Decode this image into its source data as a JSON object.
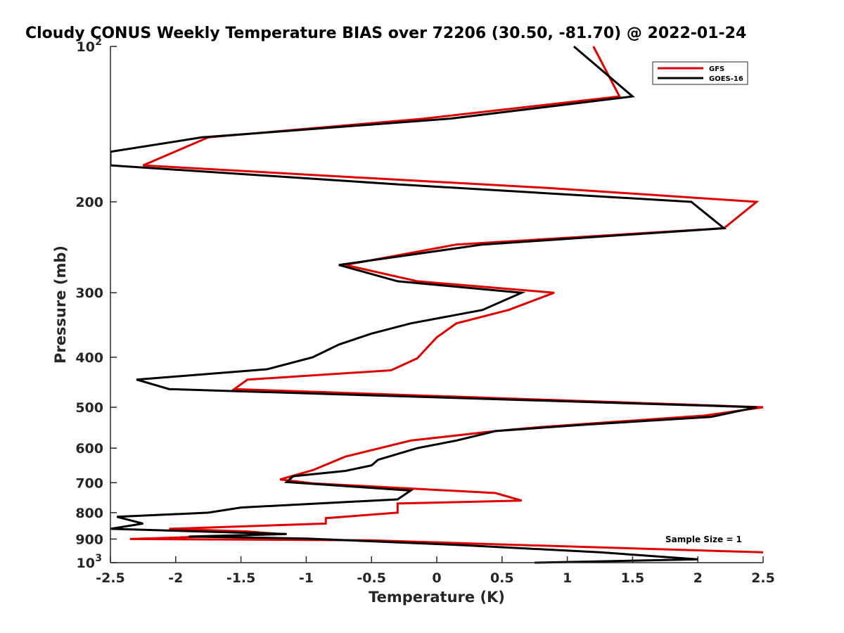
{
  "chart_data": {
    "type": "line",
    "title": "Cloudy CONUS Weekly Temperature BIAS over 72206 (30.50, -81.70) @ 2022-01-24",
    "xlabel": "Temperature (K)",
    "ylabel": "Pressure (mb)",
    "xlim": [
      -2.5,
      2.5
    ],
    "ylim": [
      100,
      1000
    ],
    "y_scale": "log",
    "y_reversed": true,
    "x_ticks": [
      -2.5,
      -2,
      -1.5,
      -1,
      -0.5,
      0,
      0.5,
      1,
      1.5,
      2,
      2.5
    ],
    "x_tick_labels": [
      "-2.5",
      "-2",
      "-1.5",
      "-1",
      "-0.5",
      "0",
      "0.5",
      "1",
      "1.5",
      "2",
      "2.5"
    ],
    "y_ticks": [
      200,
      300,
      400,
      500,
      600,
      700,
      800,
      900
    ],
    "y_tick_labels": [
      "200",
      "300",
      "400",
      "500",
      "600",
      "700",
      "800",
      "900"
    ],
    "y_end_labels": [
      {
        "value": 100,
        "base": "10",
        "exp": "2"
      },
      {
        "value": 1000,
        "base": "10",
        "exp": "3"
      }
    ],
    "legend_position": "top-right",
    "annotation": "Sample Size = 1",
    "series": [
      {
        "name": "GFS",
        "color": "#e00000",
        "points": [
          [
            1.2,
            100
          ],
          [
            1.4,
            125
          ],
          [
            -0.1,
            138
          ],
          [
            -1.75,
            150
          ],
          [
            -2.25,
            170
          ],
          [
            -0.5,
            180
          ],
          [
            0.85,
            188
          ],
          [
            2.45,
            200
          ],
          [
            2.2,
            225
          ],
          [
            0.15,
            242
          ],
          [
            -0.7,
            265
          ],
          [
            -0.15,
            285
          ],
          [
            0.9,
            300
          ],
          [
            0.55,
            324
          ],
          [
            0.15,
            344
          ],
          [
            0,
            366
          ],
          [
            -0.15,
            402
          ],
          [
            -0.35,
            424
          ],
          [
            -1.45,
            442
          ],
          [
            -1.55,
            461
          ],
          [
            2.5,
            500
          ],
          [
            2.05,
            519
          ],
          [
            0.8,
            546
          ],
          [
            0.45,
            556
          ],
          [
            -0.2,
            580
          ],
          [
            -0.7,
            623
          ],
          [
            -0.95,
            662
          ],
          [
            -1.2,
            690
          ],
          [
            -0.95,
            702
          ],
          [
            0.45,
            733
          ],
          [
            0.65,
            758
          ],
          [
            -0.3,
            768
          ],
          [
            -0.3,
            800
          ],
          [
            -0.85,
            820
          ],
          [
            -0.85,
            840
          ],
          [
            -2.05,
            860
          ],
          [
            -1.45,
            870
          ],
          [
            -1.2,
            880
          ],
          [
            -2.35,
            900
          ],
          [
            -0.5,
            905
          ],
          [
            0.5,
            922
          ],
          [
            2.5,
            955
          ]
        ]
      },
      {
        "name": "GOES-16",
        "color": "#000000",
        "points": [
          [
            1.05,
            100
          ],
          [
            1.5,
            125
          ],
          [
            0.1,
            138
          ],
          [
            -1.8,
            150
          ],
          [
            -2.5,
            160
          ],
          [
            -2.5,
            170
          ],
          [
            -0.3,
            185
          ],
          [
            1.95,
            200
          ],
          [
            2.2,
            225
          ],
          [
            0.35,
            242
          ],
          [
            -0.75,
            265
          ],
          [
            -0.3,
            285
          ],
          [
            0.65,
            300
          ],
          [
            0.35,
            324
          ],
          [
            -0.2,
            344
          ],
          [
            -0.5,
            360
          ],
          [
            -0.75,
            378
          ],
          [
            -0.95,
            400
          ],
          [
            -1.3,
            422
          ],
          [
            -2.3,
            442
          ],
          [
            -2.05,
            461
          ],
          [
            2.45,
            500
          ],
          [
            2.1,
            522
          ],
          [
            1.15,
            540
          ],
          [
            0.45,
            556
          ],
          [
            0.15,
            580
          ],
          [
            -0.15,
            600
          ],
          [
            -0.45,
            632
          ],
          [
            -0.5,
            648
          ],
          [
            -0.7,
            664
          ],
          [
            -1.1,
            680
          ],
          [
            -1.15,
            698
          ],
          [
            -0.2,
            725
          ],
          [
            -0.3,
            754
          ],
          [
            -1.5,
            782
          ],
          [
            -1.75,
            800
          ],
          [
            -2.45,
            815
          ],
          [
            -2.25,
            840
          ],
          [
            -2.5,
            860
          ],
          [
            -1.15,
            880
          ],
          [
            -1.9,
            890
          ],
          [
            -1.0,
            898
          ],
          [
            0.2,
            925
          ],
          [
            1.25,
            955
          ],
          [
            2.0,
            985
          ],
          [
            0.75,
            1000
          ]
        ]
      }
    ]
  }
}
